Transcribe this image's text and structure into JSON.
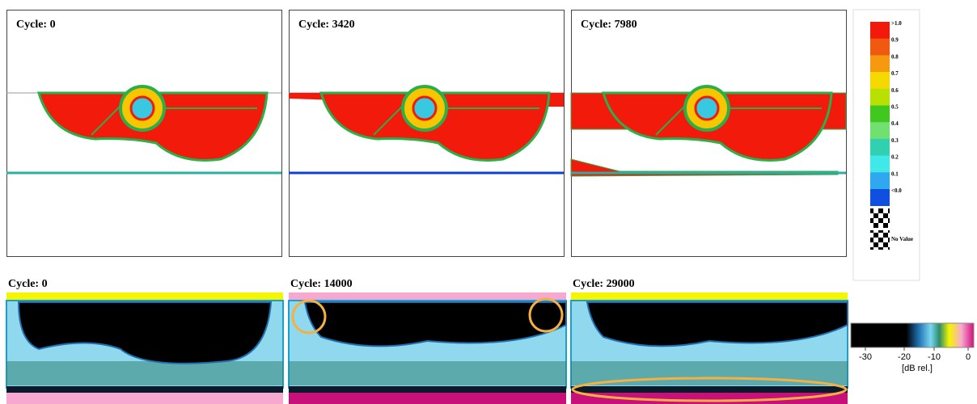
{
  "top_panels": [
    {
      "label": "Cycle: 0"
    },
    {
      "label": "Cycle: 3420"
    },
    {
      "label": "Cycle: 7980"
    }
  ],
  "bottom_panels": [
    {
      "label": "Cycle: 0"
    },
    {
      "label": "Cycle: 14000"
    },
    {
      "label": "Cycle: 29000"
    }
  ],
  "legend": {
    "labels": [
      ">1.0",
      "0.9",
      "0.8",
      "0.7",
      "0.6",
      "0.5",
      "0.4",
      "0.3",
      "0.2",
      "0.1",
      "<0.0",
      "No Value"
    ]
  },
  "colorbar": {
    "ticks": [
      "-30",
      "-20",
      "-10",
      "0"
    ],
    "unit": "[dB rel.]"
  }
}
